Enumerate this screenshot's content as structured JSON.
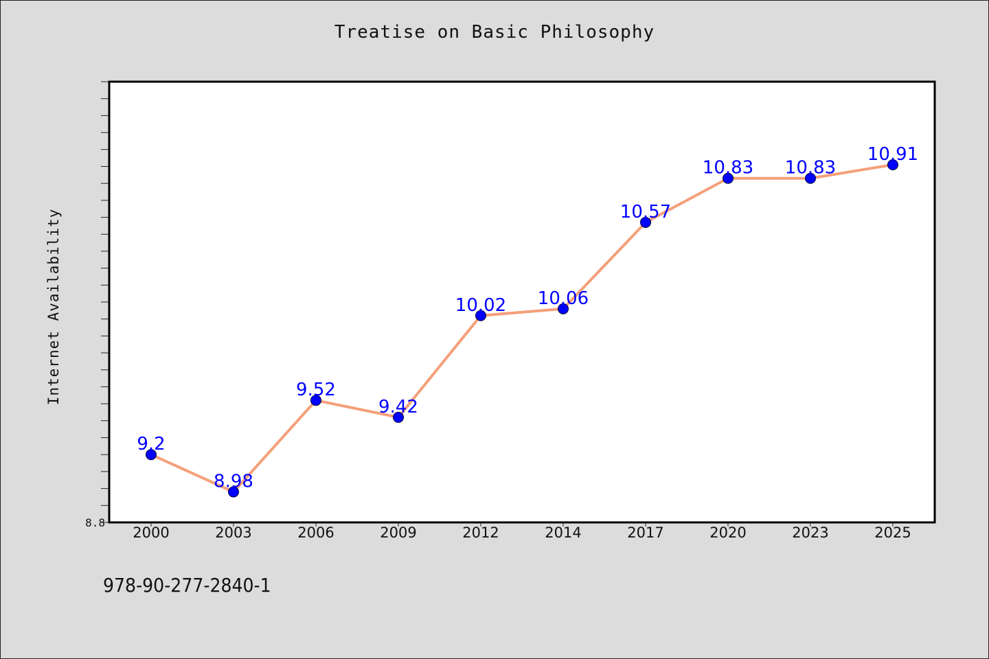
{
  "chart_data": {
    "type": "line",
    "title": "Treatise on Basic Philosophy",
    "ylabel": "Internet Availability",
    "xlabel": "",
    "x": [
      "2000",
      "2003",
      "2006",
      "2009",
      "2012",
      "2014",
      "2017",
      "2020",
      "2023",
      "2025"
    ],
    "series": [
      {
        "values": [
          9.2,
          8.98,
          9.52,
          9.42,
          10.02,
          10.06,
          10.57,
          10.83,
          10.83,
          10.91
        ],
        "data_labels": [
          "9.2",
          "8.98",
          "9.52",
          "9.42",
          "10.02",
          "10.06",
          "10.57",
          "10.83",
          "10.83",
          "10.91"
        ],
        "line_color": "#f4a07a",
        "marker_color": "#0000ff"
      }
    ],
    "ylim": [
      8.8,
      11.4
    ],
    "ytick_labels": [
      {
        "value": 8.8,
        "label": "8.8"
      }
    ],
    "grid": false,
    "legend": false
  },
  "footer": {
    "isbn": "978-90-277-2840-1"
  },
  "colors": {
    "background": "#dcdcdc",
    "plot_background": "#ffffff",
    "line": "#f4a07a",
    "marker": "#0000ff",
    "data_label": "#0000ff"
  }
}
